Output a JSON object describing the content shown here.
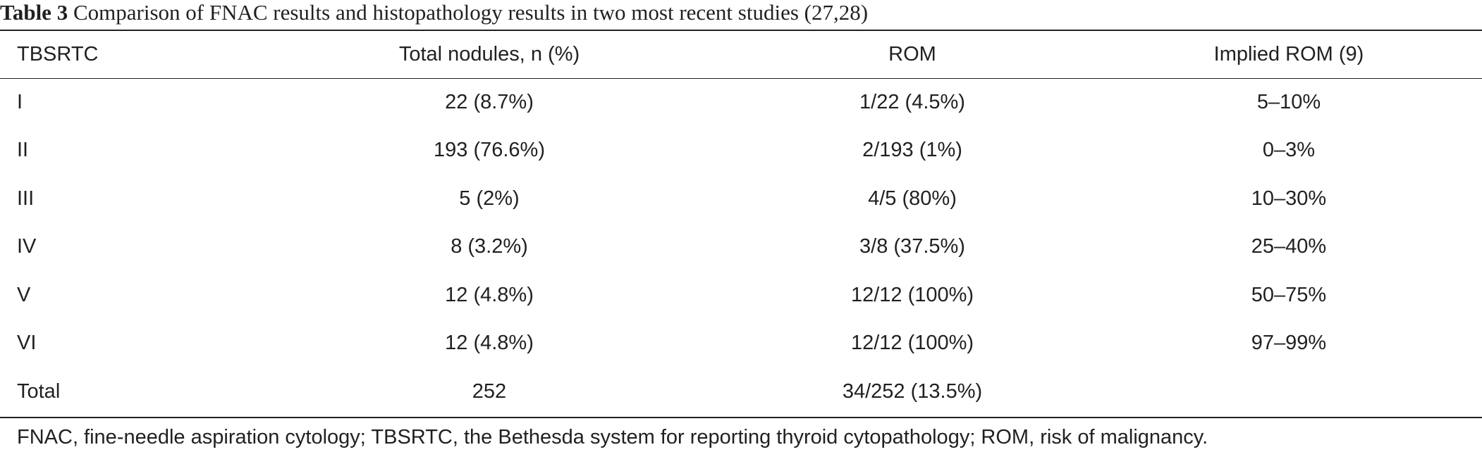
{
  "caption": {
    "label": "Table 3",
    "text": "Comparison of FNAC results and histopathology results in two most recent studies (27,28)"
  },
  "table": {
    "headers": [
      "TBSRTC",
      "Total nodules, n (%)",
      "ROM",
      "Implied ROM (9)"
    ],
    "rows": [
      [
        "I",
        "22 (8.7%)",
        "1/22 (4.5%)",
        "5–10%"
      ],
      [
        "II",
        "193 (76.6%)",
        "2/193 (1%)",
        "0–3%"
      ],
      [
        "III",
        "5 (2%)",
        "4/5 (80%)",
        "10–30%"
      ],
      [
        "IV",
        "8 (3.2%)",
        "3/8 (37.5%)",
        "25–40%"
      ],
      [
        "V",
        "12 (4.8%)",
        "12/12 (100%)",
        "50–75%"
      ],
      [
        "VI",
        "12 (4.8%)",
        "12/12 (100%)",
        "97–99%"
      ],
      [
        "Total",
        "252",
        "34/252 (13.5%)",
        ""
      ]
    ]
  },
  "footnote": "FNAC, fine-needle aspiration cytology; TBSRTC, the Bethesda system for reporting thyroid cytopathology; ROM, risk of malignancy."
}
